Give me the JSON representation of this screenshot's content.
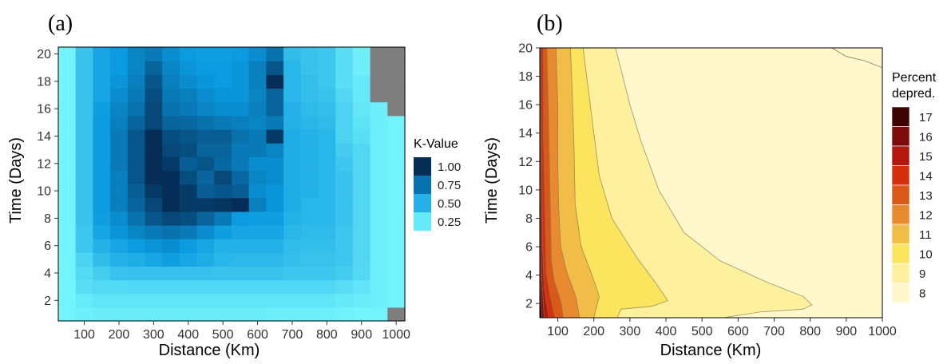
{
  "chart_data": [
    {
      "panel_label": "(a)",
      "type": "heatmap",
      "xlabel": "Distance (Km)",
      "ylabel": "Time (Days)",
      "xlim": [
        25,
        1025
      ],
      "ylim": [
        0.5,
        20.5
      ],
      "x_ticks": [
        100,
        200,
        300,
        400,
        500,
        600,
        700,
        800,
        900,
        1000
      ],
      "y_ticks": [
        2,
        4,
        6,
        8,
        10,
        12,
        14,
        16,
        18,
        20
      ],
      "x": [
        50,
        100,
        150,
        200,
        250,
        300,
        350,
        400,
        450,
        500,
        550,
        600,
        650,
        700,
        750,
        800,
        850,
        900,
        950,
        1000
      ],
      "y": [
        1,
        2,
        3,
        4,
        5,
        6,
        7,
        8,
        9,
        10,
        11,
        12,
        13,
        14,
        15,
        16,
        17,
        18,
        19,
        20
      ],
      "missing_color": "#7f7f7f",
      "legend": {
        "title": "K-Value",
        "breaks": [
          1.0,
          0.75,
          0.5,
          0.25
        ],
        "labels": [
          "1.00",
          "0.75",
          "0.50",
          "0.25"
        ],
        "placement": "right"
      },
      "color_scale": {
        "low": "#80ffff",
        "mid": "#0a9be0",
        "high": "#051f45",
        "range": [
          0.15,
          1.05
        ]
      },
      "z": [
        [
          0.2,
          0.22,
          0.23,
          0.23,
          0.23,
          0.23,
          0.23,
          0.23,
          0.23,
          0.23,
          0.23,
          0.23,
          0.22,
          0.22,
          0.22,
          0.22,
          0.21,
          0.2,
          0.2,
          null
        ],
        [
          0.2,
          0.24,
          0.27,
          0.27,
          0.27,
          0.27,
          0.27,
          0.27,
          0.27,
          0.27,
          0.27,
          0.27,
          0.27,
          0.27,
          0.27,
          0.27,
          0.25,
          0.23,
          0.22,
          0.2
        ],
        [
          0.2,
          0.3,
          0.32,
          0.32,
          0.33,
          0.33,
          0.33,
          0.33,
          0.33,
          0.33,
          0.33,
          0.33,
          0.33,
          0.33,
          0.33,
          0.33,
          0.3,
          0.27,
          0.22,
          0.2
        ],
        [
          0.2,
          0.32,
          0.38,
          0.42,
          0.43,
          0.43,
          0.43,
          0.43,
          0.43,
          0.42,
          0.42,
          0.42,
          0.42,
          0.4,
          0.4,
          0.4,
          0.38,
          0.32,
          0.22,
          0.2
        ],
        [
          0.2,
          0.35,
          0.45,
          0.5,
          0.52,
          0.55,
          0.58,
          0.55,
          0.52,
          0.48,
          0.47,
          0.47,
          0.47,
          0.44,
          0.42,
          0.42,
          0.4,
          0.33,
          0.22,
          0.2
        ],
        [
          0.2,
          0.4,
          0.5,
          0.55,
          0.6,
          0.62,
          0.65,
          0.6,
          0.55,
          0.5,
          0.5,
          0.5,
          0.5,
          0.45,
          0.44,
          0.44,
          0.4,
          0.33,
          0.22,
          0.2
        ],
        [
          0.2,
          0.4,
          0.55,
          0.62,
          0.68,
          0.72,
          0.75,
          0.72,
          0.65,
          0.58,
          0.55,
          0.55,
          0.55,
          0.48,
          0.46,
          0.46,
          0.4,
          0.33,
          0.22,
          0.2
        ],
        [
          0.2,
          0.42,
          0.58,
          0.65,
          0.75,
          0.85,
          0.9,
          0.88,
          0.8,
          0.72,
          0.6,
          0.58,
          0.58,
          0.5,
          0.48,
          0.48,
          0.42,
          0.33,
          0.22,
          0.2
        ],
        [
          0.2,
          0.42,
          0.6,
          0.7,
          0.8,
          0.9,
          1.0,
          0.95,
          0.95,
          0.97,
          1.0,
          0.7,
          0.62,
          0.52,
          0.48,
          0.48,
          0.42,
          0.33,
          0.22,
          0.2
        ],
        [
          0.2,
          0.42,
          0.6,
          0.7,
          0.82,
          0.95,
          1.0,
          0.95,
          0.82,
          0.85,
          0.82,
          0.65,
          0.62,
          0.52,
          0.5,
          0.48,
          0.42,
          0.33,
          0.22,
          0.2
        ],
        [
          0.2,
          0.42,
          0.6,
          0.7,
          0.85,
          1.0,
          1.0,
          0.88,
          0.8,
          0.9,
          0.78,
          0.68,
          0.65,
          0.52,
          0.5,
          0.48,
          0.42,
          0.33,
          0.22,
          0.2
        ],
        [
          0.2,
          0.42,
          0.6,
          0.72,
          0.85,
          1.0,
          0.95,
          0.82,
          0.85,
          0.78,
          0.72,
          0.65,
          0.65,
          0.52,
          0.5,
          0.48,
          0.4,
          0.33,
          0.22,
          0.2
        ],
        [
          0.2,
          0.42,
          0.6,
          0.72,
          0.85,
          1.0,
          0.9,
          0.88,
          0.8,
          0.8,
          0.72,
          0.72,
          0.68,
          0.52,
          0.5,
          0.48,
          0.38,
          0.33,
          0.22,
          0.2
        ],
        [
          0.2,
          0.42,
          0.6,
          0.72,
          0.85,
          1.0,
          0.88,
          0.85,
          0.82,
          0.82,
          0.75,
          0.72,
          0.95,
          0.52,
          0.5,
          0.48,
          0.35,
          0.3,
          0.22,
          0.2
        ],
        [
          0.2,
          0.42,
          0.6,
          0.7,
          0.8,
          0.9,
          0.8,
          0.78,
          0.75,
          0.72,
          0.7,
          0.68,
          0.72,
          0.5,
          0.48,
          0.46,
          0.35,
          0.28,
          0.22,
          0.2
        ],
        [
          0.2,
          0.42,
          0.58,
          0.68,
          0.75,
          0.9,
          0.75,
          0.72,
          0.68,
          0.65,
          0.65,
          0.7,
          0.8,
          0.5,
          0.46,
          0.44,
          0.35,
          0.26,
          0.22,
          null
        ],
        [
          0.2,
          0.42,
          0.55,
          0.65,
          0.72,
          0.88,
          0.72,
          0.7,
          0.65,
          0.62,
          0.62,
          0.68,
          0.8,
          0.48,
          0.44,
          0.42,
          0.33,
          0.25,
          null,
          null
        ],
        [
          0.2,
          0.42,
          0.55,
          0.62,
          0.7,
          0.85,
          0.7,
          0.65,
          0.62,
          0.6,
          0.62,
          0.7,
          1.0,
          0.48,
          0.44,
          0.4,
          0.3,
          0.25,
          null,
          null
        ],
        [
          0.2,
          0.42,
          0.55,
          0.6,
          0.68,
          0.8,
          0.68,
          0.62,
          0.6,
          0.6,
          0.62,
          0.7,
          0.85,
          0.48,
          0.42,
          0.4,
          0.3,
          0.22,
          null,
          null
        ],
        [
          0.2,
          0.42,
          0.55,
          0.6,
          0.68,
          0.72,
          0.65,
          0.6,
          0.58,
          0.58,
          0.6,
          0.65,
          0.75,
          0.45,
          0.42,
          0.4,
          0.3,
          0.22,
          null,
          null
        ]
      ]
    },
    {
      "panel_label": "(b)",
      "type": "contour",
      "xlabel": "Distance (Km)",
      "ylabel": "Time (Days)",
      "xlim": [
        50,
        1000
      ],
      "ylim": [
        1,
        20
      ],
      "x_ticks": [
        100,
        200,
        300,
        400,
        500,
        600,
        700,
        800,
        900,
        1000
      ],
      "y_ticks": [
        2,
        4,
        6,
        8,
        10,
        12,
        14,
        16,
        18,
        20
      ],
      "legend": {
        "title": [
          "Percent",
          "depred."
        ],
        "levels": [
          17,
          16,
          15,
          14,
          13,
          12,
          11,
          10,
          9,
          8
        ],
        "colors": [
          "#3d0404",
          "#7e0c0c",
          "#b5170e",
          "#d4300e",
          "#da5818",
          "#e78a30",
          "#f2bc48",
          "#fbe45e",
          "#fdf19e",
          "#fff8cc"
        ],
        "placement": "right"
      },
      "contour_lines": {
        "8": [
          [
            860,
            20
          ],
          [
            900,
            19.4
          ],
          [
            950,
            19.1
          ],
          [
            1000,
            18.6
          ]
        ],
        "9": [
          [
            260,
            20
          ],
          [
            280,
            18
          ],
          [
            300,
            16
          ],
          [
            330,
            13.5
          ],
          [
            380,
            10
          ],
          [
            450,
            7
          ],
          [
            550,
            5
          ],
          [
            680,
            3.5
          ],
          [
            780,
            2.5
          ],
          [
            805,
            1.9
          ],
          [
            780,
            1.6
          ],
          [
            660,
            1.4
          ],
          [
            560,
            1
          ]
        ],
        "10": [
          [
            170,
            20
          ],
          [
            185,
            17
          ],
          [
            200,
            14
          ],
          [
            215,
            11
          ],
          [
            250,
            8
          ],
          [
            320,
            5.2
          ],
          [
            370,
            3.5
          ],
          [
            405,
            2.2
          ],
          [
            360,
            1.8
          ],
          [
            275,
            1.6
          ],
          [
            265,
            1
          ]
        ],
        "11": [
          [
            135,
            20
          ],
          [
            140,
            17
          ],
          [
            145,
            13
          ],
          [
            148,
            9
          ],
          [
            165,
            6
          ],
          [
            195,
            4
          ],
          [
            215,
            2.5
          ],
          [
            200,
            1
          ]
        ],
        "12": [
          [
            95,
            20
          ],
          [
            100,
            16
          ],
          [
            100,
            12
          ],
          [
            102,
            9
          ],
          [
            108,
            6
          ],
          [
            125,
            4.2
          ],
          [
            150,
            2.5
          ],
          [
            160,
            1
          ]
        ],
        "13": [
          [
            70,
            20
          ],
          [
            75,
            14
          ],
          [
            80,
            8
          ],
          [
            82,
            5
          ],
          [
            90,
            3.6
          ],
          [
            110,
            2
          ],
          [
            115,
            1
          ]
        ],
        "14": [
          [
            60,
            20
          ],
          [
            60,
            14
          ],
          [
            65,
            8
          ],
          [
            68,
            4.2
          ],
          [
            78,
            2.6
          ],
          [
            92,
            1
          ]
        ],
        "15": [
          [
            54,
            20
          ],
          [
            55,
            12
          ],
          [
            58,
            6
          ],
          [
            62,
            3.2
          ],
          [
            75,
            1
          ]
        ],
        "16": [
          [
            51,
            18
          ],
          [
            52,
            10
          ],
          [
            55,
            4
          ],
          [
            62,
            1
          ]
        ],
        "17": [
          [
            50,
            8
          ],
          [
            52,
            3
          ],
          [
            56,
            1
          ]
        ]
      }
    }
  ]
}
